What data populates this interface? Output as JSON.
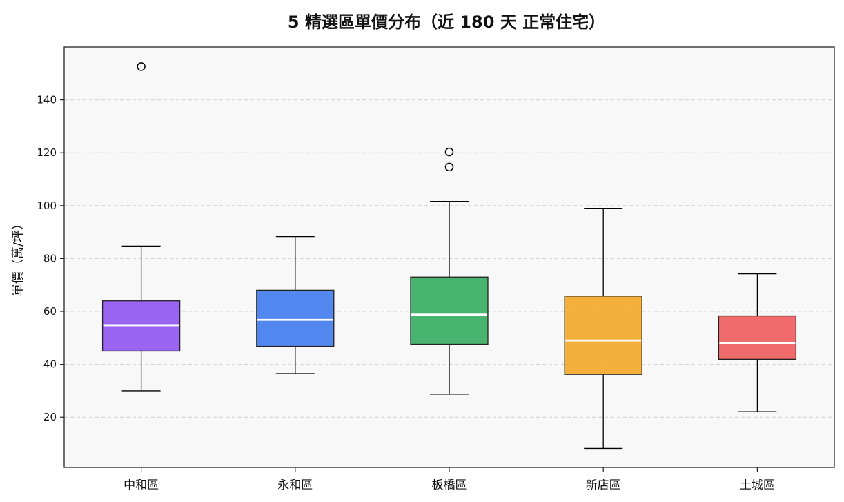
{
  "chart_data": {
    "type": "box",
    "title": "5 精選區單價分布（近 180 天 正常住宅）",
    "xlabel": "",
    "ylabel": "單價（萬/坪）",
    "ylim": [
      1,
      160
    ],
    "yticks": [
      20,
      40,
      60,
      80,
      100,
      120,
      140
    ],
    "grid": "horizontal dashed",
    "categories": [
      "中和區",
      "永和區",
      "板橋區",
      "新店區",
      "土城區"
    ],
    "series": [
      {
        "category": "中和區",
        "whisker_low": 30,
        "q1": 45,
        "median": 54.8,
        "q3": 64,
        "whisker_high": 84.7,
        "outliers": [
          152.6
        ],
        "color": "#8b4ff0"
      },
      {
        "category": "永和區",
        "whisker_low": 36.5,
        "q1": 46.8,
        "median": 56.8,
        "q3": 68,
        "whisker_high": 88.3,
        "outliers": [],
        "color": "#3b76ee"
      },
      {
        "category": "板橋區",
        "whisker_low": 28.7,
        "q1": 47.6,
        "median": 58.8,
        "q3": 73,
        "whisker_high": 101.6,
        "outliers": [
          114.6,
          120.3
        ],
        "color": "#2faa5c"
      },
      {
        "category": "新店區",
        "whisker_low": 8.2,
        "q1": 36.2,
        "median": 49,
        "q3": 65.8,
        "whisker_high": 99,
        "outliers": [],
        "color": "#f2a51f"
      },
      {
        "category": "土城區",
        "whisker_low": 22.1,
        "q1": 41.9,
        "median": 48.1,
        "q3": 58.3,
        "whisker_high": 74.2,
        "outliers": [],
        "color": "#ee5657"
      }
    ]
  }
}
